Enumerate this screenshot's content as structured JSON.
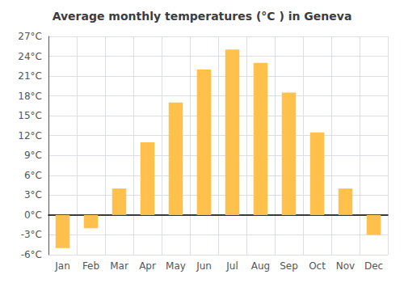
{
  "chart_data": {
    "type": "bar",
    "title": "Average monthly temperatures (°C ) in Geneva",
    "categories": [
      "Jan",
      "Feb",
      "Mar",
      "Apr",
      "May",
      "Jun",
      "Jul",
      "Aug",
      "Sep",
      "Oct",
      "Nov",
      "Dec"
    ],
    "values": [
      -5.0,
      -2.0,
      4.0,
      11.0,
      17.0,
      22.0,
      25.0,
      23.0,
      18.5,
      12.5,
      4.0,
      -3.0
    ],
    "color": "#FFC04C",
    "ylim": [
      -6,
      27
    ],
    "yticks": [
      {
        "value": -6,
        "label": "-6°C"
      },
      {
        "value": -3,
        "label": "-3°C"
      },
      {
        "value": 0,
        "label": "0°C"
      },
      {
        "value": 3,
        "label": "3°C"
      },
      {
        "value": 6,
        "label": "6°C"
      },
      {
        "value": 9,
        "label": "9°C"
      },
      {
        "value": 12,
        "label": "12°C"
      },
      {
        "value": 15,
        "label": "15°C"
      },
      {
        "value": 18,
        "label": "18°C"
      },
      {
        "value": 21,
        "label": "21°C"
      },
      {
        "value": 24,
        "label": "24°C"
      },
      {
        "value": 27,
        "label": "27°C"
      }
    ],
    "grid": true
  }
}
